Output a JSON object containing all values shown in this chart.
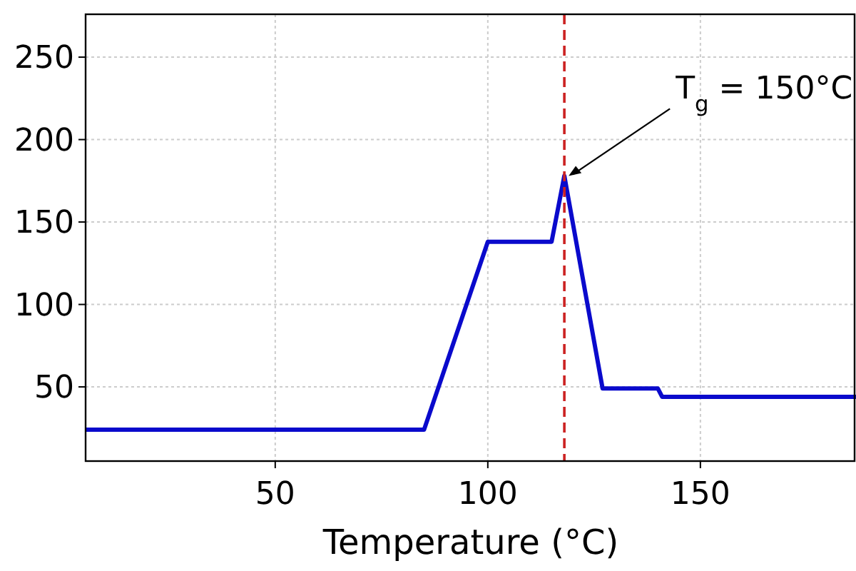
{
  "chart_data": {
    "type": "line",
    "xlabel": "Temperature (°C)",
    "x": [
      5.4,
      85,
      100,
      115,
      118,
      127,
      140,
      141,
      186.6
    ],
    "series": [
      {
        "color": "#0a0acc",
        "values": [
          24,
          24,
          138,
          138,
          178,
          49,
          49,
          44,
          44
        ]
      }
    ],
    "xlim": [
      5.4,
      186.6
    ],
    "ylim": [
      5,
      276
    ],
    "xticks": [
      50,
      100,
      150
    ],
    "yticks": [
      50,
      100,
      150,
      200,
      250
    ],
    "grid": true,
    "line_style": "solid",
    "marker": "none",
    "ref_lines": [
      {
        "axis": "x",
        "value": 118,
        "color": "#cc2222",
        "line_style": "dashed"
      }
    ],
    "annotations": [
      {
        "text": "T$_{g}$ = 150°C",
        "x": 118,
        "y": 178
      }
    ]
  }
}
